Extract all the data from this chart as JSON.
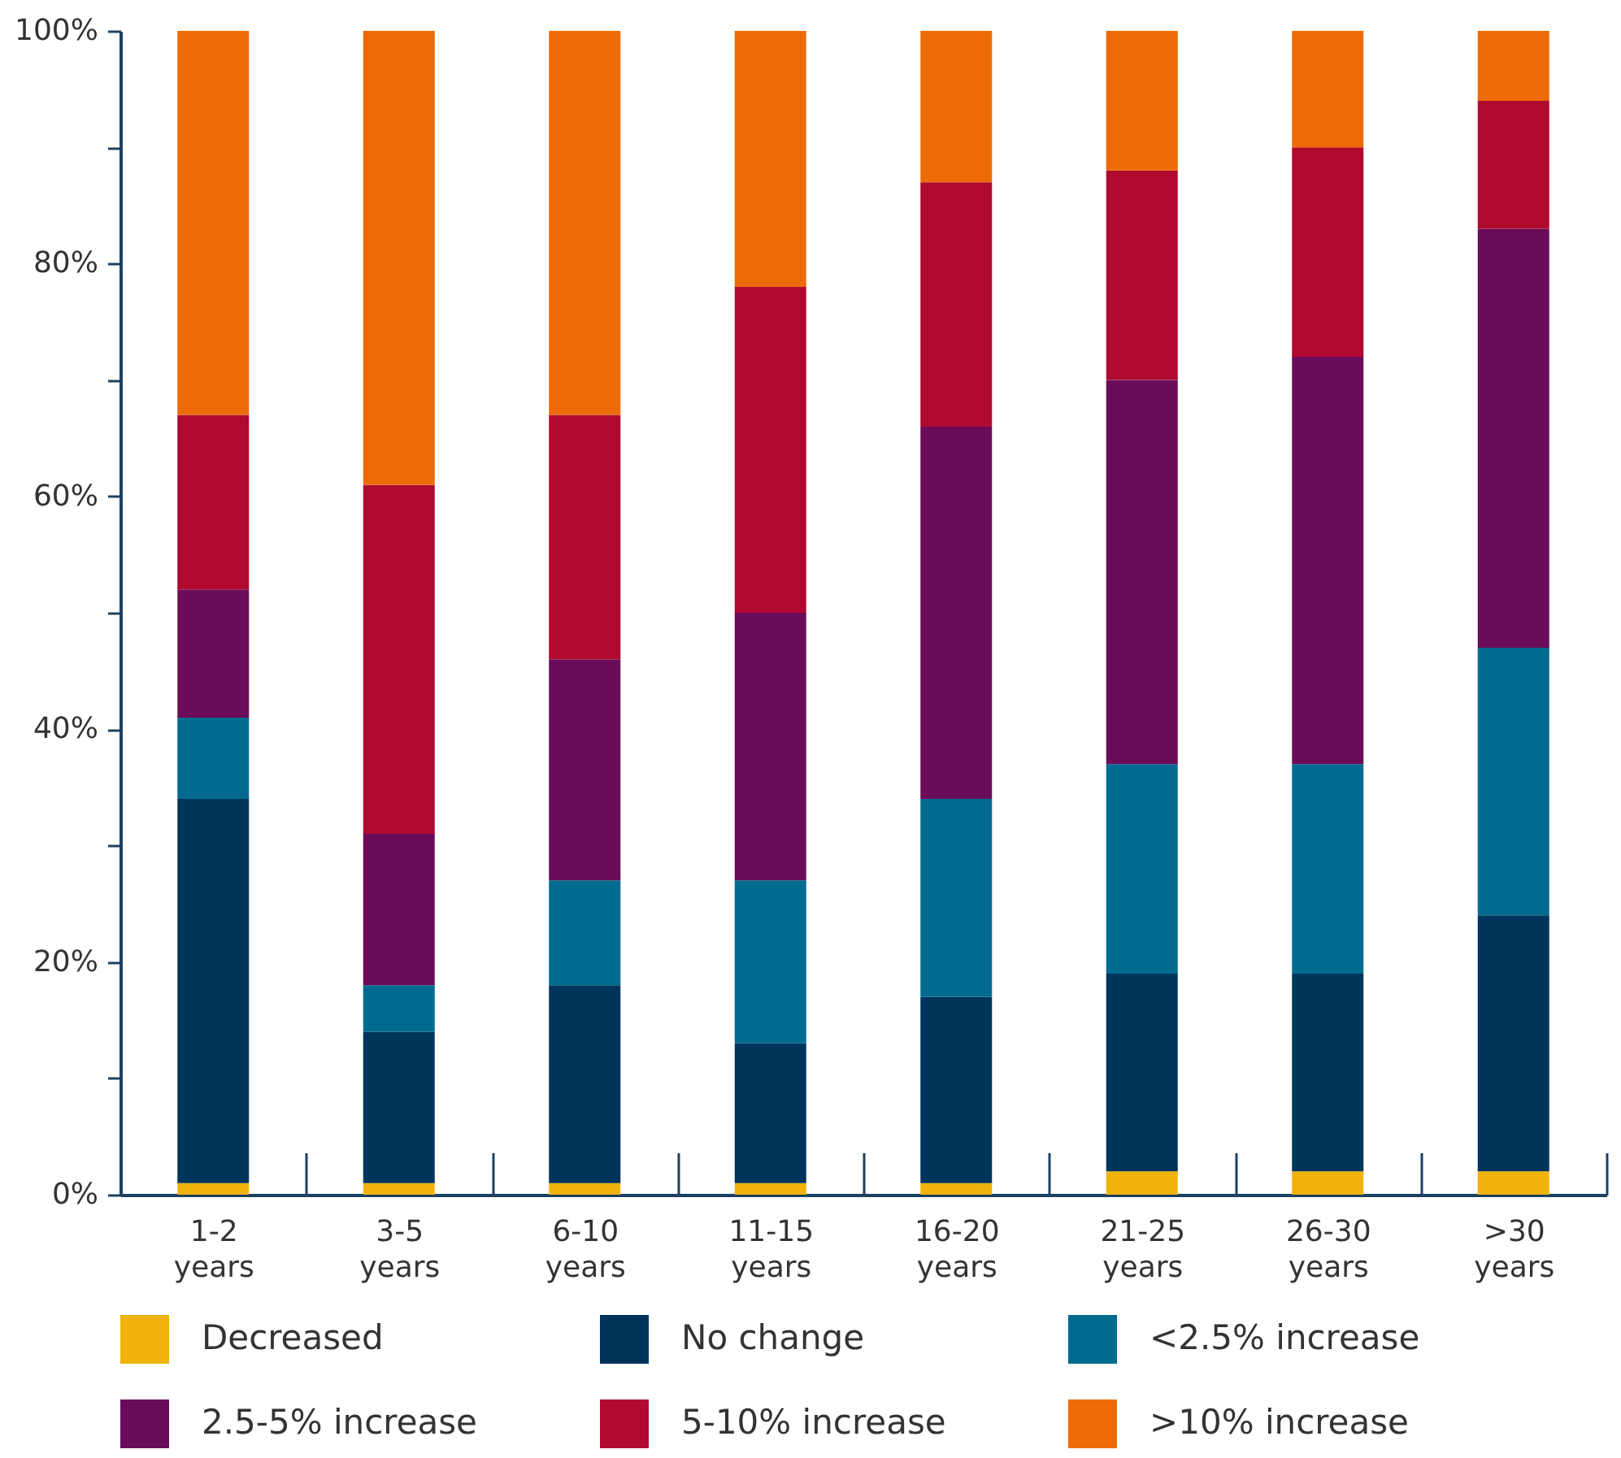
{
  "chart_data": {
    "type": "bar",
    "stacked": true,
    "categories": [
      "1-2 years",
      "3-5 years",
      "6-10 years",
      "11-15 years",
      "16-20 years",
      "21-25 years",
      "26-30 years",
      ">30 years"
    ],
    "ylim": [
      0,
      100
    ],
    "yticks": [
      {
        "value": 0,
        "label": "0%"
      },
      {
        "value": 10,
        "label": null
      },
      {
        "value": 20,
        "label": "20%"
      },
      {
        "value": 30,
        "label": null
      },
      {
        "value": 40,
        "label": "40%"
      },
      {
        "value": 50,
        "label": null
      },
      {
        "value": 60,
        "label": "60%"
      },
      {
        "value": 70,
        "label": null
      },
      {
        "value": 80,
        "label": "80%"
      },
      {
        "value": 90,
        "label": null
      },
      {
        "value": 100,
        "label": "100%"
      }
    ],
    "grid": false,
    "legend": "bottom",
    "series": [
      {
        "name": "Decreased",
        "color": "#f0b30c",
        "values": [
          1,
          1,
          1,
          1,
          1,
          2,
          2,
          2
        ]
      },
      {
        "name": "No change",
        "color": "#00355b",
        "values": [
          33,
          13,
          17,
          12,
          16,
          17,
          17,
          22
        ]
      },
      {
        "name": "<2.5% increase",
        "color": "#006b8f",
        "values": [
          7,
          4,
          9,
          14,
          17,
          18,
          18,
          23
        ]
      },
      {
        "name": "2.5-5% increase",
        "color": "#6b0c59",
        "values": [
          11,
          13,
          19,
          23,
          32,
          33,
          35,
          36
        ]
      },
      {
        "name": "5-10% increase",
        "color": "#b00a30",
        "values": [
          15,
          30,
          21,
          28,
          21,
          18,
          18,
          11
        ]
      },
      {
        "name": ">10% increase",
        "color": "#ed6b06",
        "values": [
          33,
          39,
          33,
          22,
          13,
          12,
          10,
          6
        ]
      }
    ]
  }
}
